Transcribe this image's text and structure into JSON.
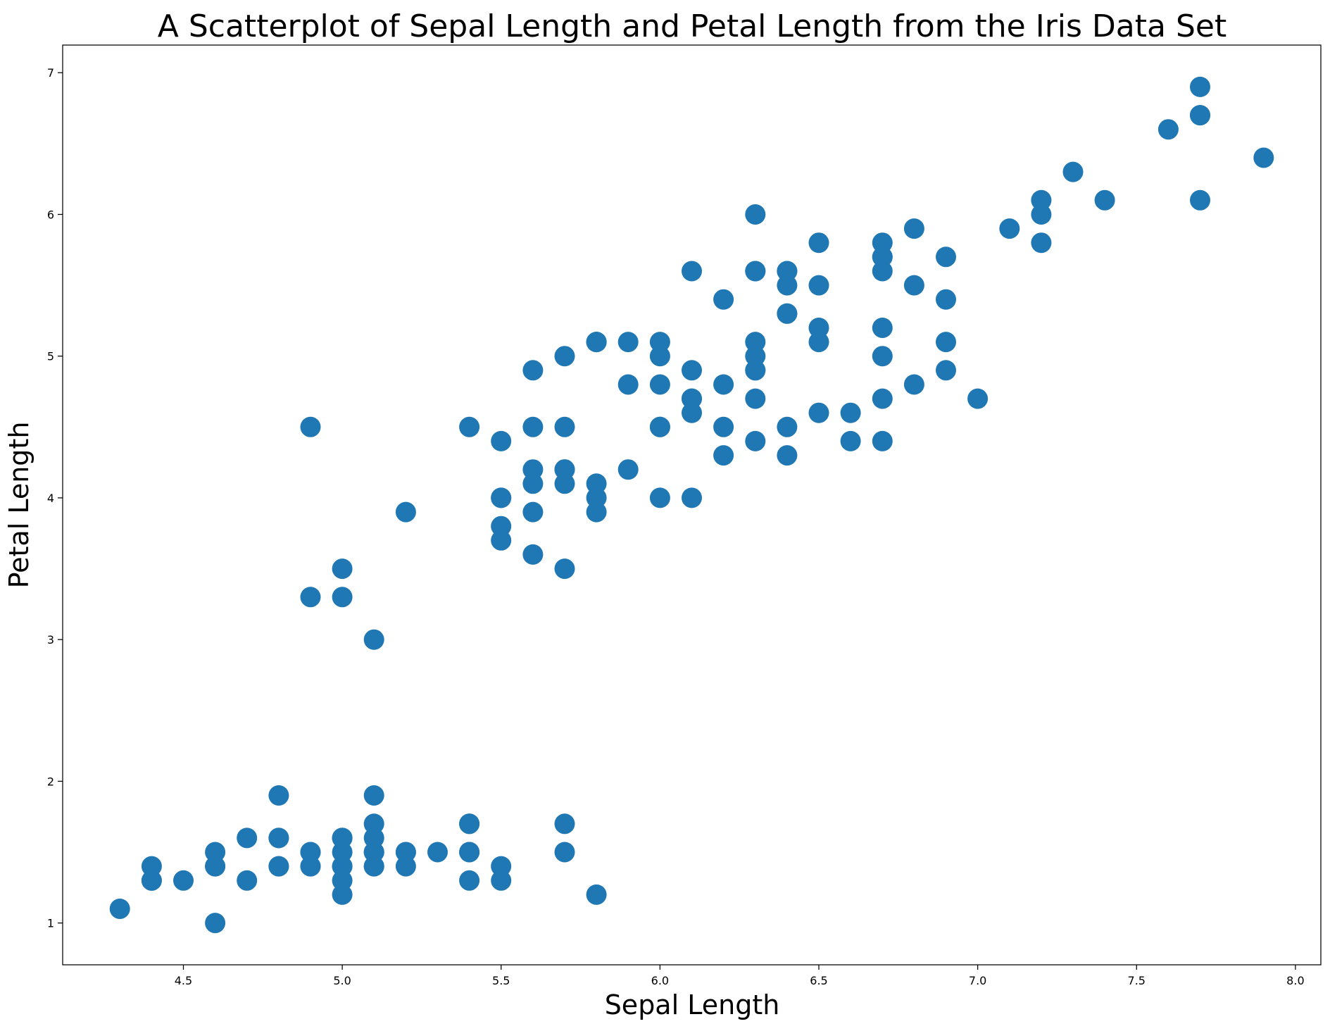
{
  "chart_data": {
    "type": "scatter",
    "title": "A Scatterplot of Sepal Length and Petal Length from the Iris Data Set",
    "xlabel": "Sepal Length",
    "ylabel": "Petal Length",
    "xlim": [
      4.12,
      8.08
    ],
    "ylim": [
      0.705,
      7.195
    ],
    "xticks": [
      4.5,
      5.0,
      5.5,
      6.0,
      6.5,
      7.0,
      7.5,
      8.0
    ],
    "xtick_labels": [
      "4.5",
      "5.0",
      "5.5",
      "6.0",
      "6.5",
      "7.0",
      "7.5",
      "8.0"
    ],
    "yticks": [
      1,
      2,
      3,
      4,
      5,
      6,
      7
    ],
    "ytick_labels": [
      "1",
      "2",
      "3",
      "4",
      "5",
      "6",
      "7"
    ],
    "grid": false,
    "marker_color": "#1f77b4",
    "series": [
      {
        "points": [
          [
            5.1,
            1.4
          ],
          [
            4.9,
            1.4
          ],
          [
            4.7,
            1.3
          ],
          [
            4.6,
            1.5
          ],
          [
            5.0,
            1.4
          ],
          [
            5.4,
            1.7
          ],
          [
            4.6,
            1.4
          ],
          [
            5.0,
            1.5
          ],
          [
            4.4,
            1.4
          ],
          [
            4.9,
            1.5
          ],
          [
            5.4,
            1.5
          ],
          [
            4.8,
            1.6
          ],
          [
            4.8,
            1.4
          ],
          [
            4.3,
            1.1
          ],
          [
            5.8,
            1.2
          ],
          [
            5.7,
            1.5
          ],
          [
            5.4,
            1.3
          ],
          [
            5.1,
            1.4
          ],
          [
            5.7,
            1.7
          ],
          [
            5.1,
            1.5
          ],
          [
            5.4,
            1.7
          ],
          [
            5.1,
            1.5
          ],
          [
            4.6,
            1.0
          ],
          [
            5.1,
            1.7
          ],
          [
            4.8,
            1.9
          ],
          [
            5.0,
            1.6
          ],
          [
            5.0,
            1.6
          ],
          [
            5.2,
            1.5
          ],
          [
            5.2,
            1.4
          ],
          [
            4.7,
            1.6
          ],
          [
            4.8,
            1.6
          ],
          [
            5.4,
            1.5
          ],
          [
            5.2,
            1.5
          ],
          [
            5.5,
            1.4
          ],
          [
            4.9,
            1.5
          ],
          [
            5.0,
            1.2
          ],
          [
            5.5,
            1.3
          ],
          [
            4.9,
            1.4
          ],
          [
            4.4,
            1.3
          ],
          [
            5.1,
            1.5
          ],
          [
            5.0,
            1.3
          ],
          [
            4.5,
            1.3
          ],
          [
            4.4,
            1.3
          ],
          [
            5.0,
            1.6
          ],
          [
            5.1,
            1.9
          ],
          [
            4.8,
            1.4
          ],
          [
            5.1,
            1.6
          ],
          [
            4.6,
            1.4
          ],
          [
            5.3,
            1.5
          ],
          [
            5.0,
            1.4
          ],
          [
            7.0,
            4.7
          ],
          [
            6.4,
            4.5
          ],
          [
            6.9,
            4.9
          ],
          [
            5.5,
            4.0
          ],
          [
            6.5,
            4.6
          ],
          [
            5.7,
            4.5
          ],
          [
            6.3,
            4.7
          ],
          [
            4.9,
            3.3
          ],
          [
            6.6,
            4.6
          ],
          [
            5.2,
            3.9
          ],
          [
            5.0,
            3.5
          ],
          [
            5.9,
            4.2
          ],
          [
            6.0,
            4.0
          ],
          [
            6.1,
            4.7
          ],
          [
            5.6,
            3.6
          ],
          [
            6.7,
            4.4
          ],
          [
            5.6,
            4.5
          ],
          [
            5.8,
            4.1
          ],
          [
            6.2,
            4.5
          ],
          [
            5.6,
            3.9
          ],
          [
            5.9,
            4.8
          ],
          [
            6.1,
            4.0
          ],
          [
            6.3,
            4.9
          ],
          [
            6.1,
            4.7
          ],
          [
            6.4,
            4.3
          ],
          [
            6.6,
            4.4
          ],
          [
            6.8,
            4.8
          ],
          [
            6.7,
            5.0
          ],
          [
            6.0,
            4.5
          ],
          [
            5.7,
            3.5
          ],
          [
            5.5,
            3.8
          ],
          [
            5.5,
            3.7
          ],
          [
            5.8,
            3.9
          ],
          [
            6.0,
            5.1
          ],
          [
            5.4,
            4.5
          ],
          [
            6.0,
            4.5
          ],
          [
            6.7,
            4.7
          ],
          [
            6.3,
            4.4
          ],
          [
            5.6,
            4.1
          ],
          [
            5.5,
            4.0
          ],
          [
            5.5,
            4.4
          ],
          [
            6.1,
            4.6
          ],
          [
            5.8,
            4.0
          ],
          [
            5.0,
            3.3
          ],
          [
            5.6,
            4.2
          ],
          [
            5.7,
            4.2
          ],
          [
            5.7,
            4.2
          ],
          [
            6.2,
            4.3
          ],
          [
            5.1,
            3.0
          ],
          [
            5.7,
            4.1
          ],
          [
            6.3,
            6.0
          ],
          [
            5.8,
            5.1
          ],
          [
            7.1,
            5.9
          ],
          [
            6.3,
            5.6
          ],
          [
            6.5,
            5.8
          ],
          [
            7.6,
            6.6
          ],
          [
            4.9,
            4.5
          ],
          [
            7.3,
            6.3
          ],
          [
            6.7,
            5.8
          ],
          [
            7.2,
            6.1
          ],
          [
            6.5,
            5.1
          ],
          [
            6.4,
            5.3
          ],
          [
            6.8,
            5.5
          ],
          [
            5.7,
            5.0
          ],
          [
            5.8,
            5.1
          ],
          [
            6.4,
            5.3
          ],
          [
            6.5,
            5.5
          ],
          [
            7.7,
            6.7
          ],
          [
            7.7,
            6.9
          ],
          [
            6.0,
            5.0
          ],
          [
            6.9,
            5.7
          ],
          [
            5.6,
            4.9
          ],
          [
            7.7,
            6.7
          ],
          [
            6.3,
            4.9
          ],
          [
            6.7,
            5.7
          ],
          [
            7.2,
            6.0
          ],
          [
            6.2,
            4.8
          ],
          [
            6.1,
            4.9
          ],
          [
            6.4,
            5.6
          ],
          [
            7.2,
            5.8
          ],
          [
            7.4,
            6.1
          ],
          [
            7.9,
            6.4
          ],
          [
            6.4,
            5.6
          ],
          [
            6.3,
            5.1
          ],
          [
            6.1,
            5.6
          ],
          [
            7.7,
            6.1
          ],
          [
            6.3,
            5.6
          ],
          [
            6.4,
            5.5
          ],
          [
            6.0,
            4.8
          ],
          [
            6.9,
            5.4
          ],
          [
            6.7,
            5.6
          ],
          [
            6.9,
            5.1
          ],
          [
            5.8,
            5.1
          ],
          [
            6.8,
            5.9
          ],
          [
            6.7,
            5.7
          ],
          [
            6.7,
            5.2
          ],
          [
            6.3,
            5.0
          ],
          [
            6.5,
            5.2
          ],
          [
            6.2,
            5.4
          ],
          [
            5.9,
            5.1
          ]
        ]
      }
    ]
  }
}
